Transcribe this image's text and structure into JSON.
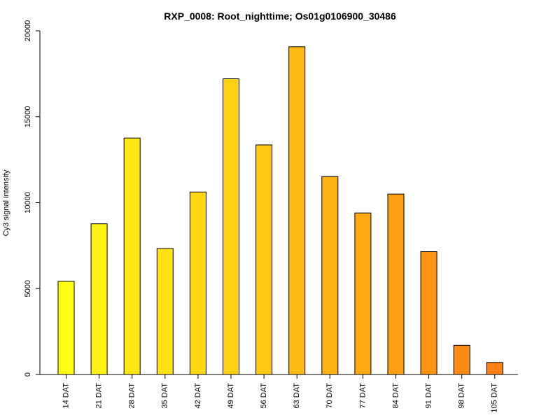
{
  "chart_data": {
    "type": "bar",
    "title": "RXP_0008: Root_nighttime; Os01g0106900_30486",
    "xlabel": "",
    "ylabel": "Cy3 signal intensity",
    "ylim": [
      0,
      20000
    ],
    "yticks": [
      0,
      5000,
      10000,
      15000,
      20000
    ],
    "ytick_labels": [
      "0",
      "5000",
      "10000",
      "15000",
      "20000"
    ],
    "categories": [
      "14 DAT",
      "21 DAT",
      "28 DAT",
      "35 DAT",
      "42 DAT",
      "49 DAT",
      "56 DAT",
      "63 DAT",
      "70 DAT",
      "77 DAT",
      "84 DAT",
      "91 DAT",
      "98 DAT",
      "105 DAT"
    ],
    "values": [
      5420,
      8770,
      13760,
      7330,
      10620,
      17210,
      13360,
      19070,
      11520,
      9400,
      10500,
      7150,
      1700,
      700
    ],
    "colors": [
      "#FFFF14",
      "#FFF214",
      "#FFE814",
      "#FFE114",
      "#FFD814",
      "#FFD114",
      "#FFC814",
      "#FFBB14",
      "#FFB214",
      "#FFA914",
      "#FFA014",
      "#FF9414",
      "#FF8B14",
      "#FF8014"
    ],
    "grid": false,
    "legend": "none"
  }
}
